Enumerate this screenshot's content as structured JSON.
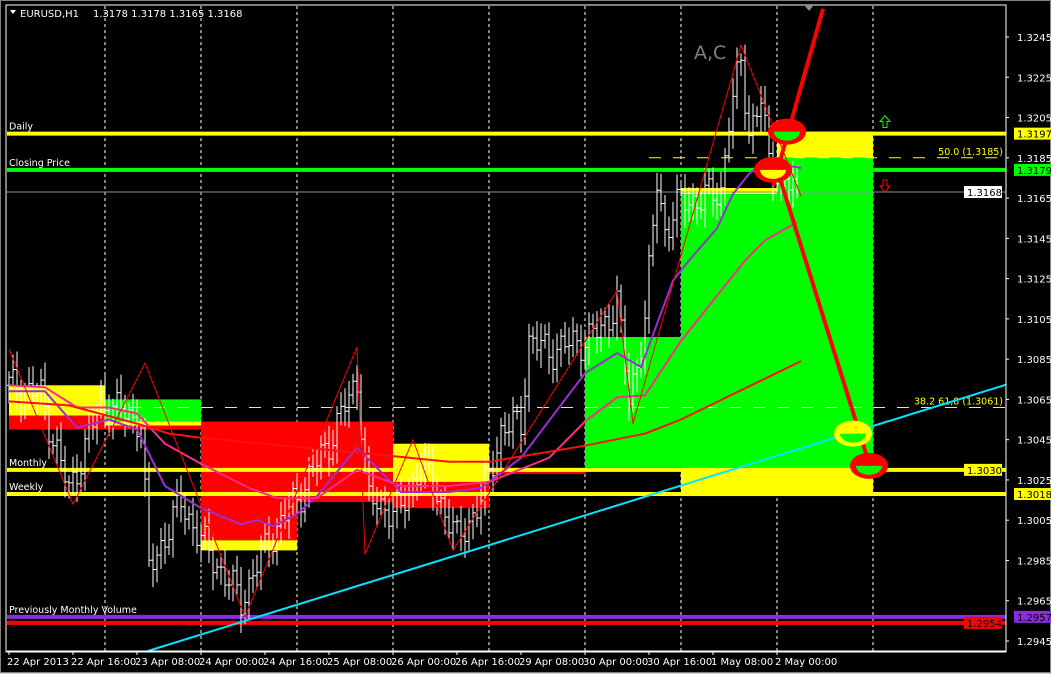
{
  "header": {
    "symbol_label": "EURUSD,H1",
    "ohlc": "1.3178 1.3178 1.3165 1.3168"
  },
  "chart_data": {
    "type": "ohlc_bar",
    "symbol": "EURUSD",
    "timeframe": "H1",
    "ylim": [
      1.2945,
      1.3245
    ],
    "y_ticks": [
      "1.3245",
      "1.3225",
      "1.3205",
      "1.3185",
      "1.3165",
      "1.3145",
      "1.3125",
      "1.3105",
      "1.3085",
      "1.3065",
      "1.3045",
      "1.3025",
      "1.3005",
      "1.2985",
      "1.2965",
      "1.2945"
    ],
    "x_ticks": [
      {
        "t": "2013-04-22 00:00",
        "label": "22 Apr 2013"
      },
      {
        "t": "2013-04-22 16:00",
        "label": "22 Apr 16:00"
      },
      {
        "t": "2013-04-23 08:00",
        "label": "23 Apr 08:00"
      },
      {
        "t": "2013-04-24 00:00",
        "label": "24 Apr 00:00"
      },
      {
        "t": "2013-04-24 16:00",
        "label": "24 Apr 16:00"
      },
      {
        "t": "2013-04-25 08:00",
        "label": "25 Apr 08:00"
      },
      {
        "t": "2013-04-26 00:00",
        "label": "26 Apr 00:00"
      },
      {
        "t": "2013-04-26 16:00",
        "label": "26 Apr 16:00"
      },
      {
        "t": "2013-04-29 08:00",
        "label": "29 Apr 08:00"
      },
      {
        "t": "2013-04-30 00:00",
        "label": "30 Apr 00:00"
      },
      {
        "t": "2013-04-30 16:00",
        "label": "30 Apr 16:00"
      },
      {
        "t": "2013-05-01 08:00",
        "label": "1 May 08:00"
      },
      {
        "t": "2013-05-02 00:00",
        "label": "2 May 00:00"
      }
    ],
    "period_separators": [
      "2013-04-23 00:00",
      "2013-04-24 00:00",
      "2013-04-25 00:00",
      "2013-04-26 00:00",
      "2013-04-29 00:00",
      "2013-04-30 00:00",
      "2013-05-01 00:00",
      "2013-05-02 00:00",
      "2013-05-03 00:00"
    ],
    "price_path": [
      [
        "2013-04-22 00:00",
        1.3072
      ],
      [
        "2013-04-22 08:00",
        1.3067
      ],
      [
        "2013-04-22 15:00",
        1.3019
      ],
      [
        "2013-04-22 23:00",
        1.3064
      ],
      [
        "2013-04-23 09:00",
        1.3054
      ],
      [
        "2013-04-23 11:00",
        1.298
      ],
      [
        "2013-04-23 19:00",
        1.3014
      ],
      [
        "2013-04-24 00:00",
        1.2995
      ],
      [
        "2013-04-24 10:00",
        1.2965
      ],
      [
        "2013-04-24 17:00",
        1.2995
      ],
      [
        "2013-04-25 01:00",
        1.3019
      ],
      [
        "2013-04-25 08:00",
        1.3044
      ],
      [
        "2013-04-25 15:00",
        1.3074
      ],
      [
        "2013-04-25 18:00",
        1.3014
      ],
      [
        "2013-04-26 02:00",
        1.3009
      ],
      [
        "2013-04-26 07:00",
        1.3034
      ],
      [
        "2013-04-26 12:00",
        1.3014
      ],
      [
        "2013-04-26 16:00",
        1.2995
      ],
      [
        "2013-04-26 22:00",
        1.3014
      ],
      [
        "2013-04-29 03:00",
        1.3049
      ],
      [
        "2013-04-29 08:00",
        1.3054
      ],
      [
        "2013-04-29 10:00",
        1.3094
      ],
      [
        "2013-04-29 15:00",
        1.3089
      ],
      [
        "2013-04-29 23:00",
        1.3094
      ],
      [
        "2013-04-30 04:00",
        1.3099
      ],
      [
        "2013-04-30 08:00",
        1.3114
      ],
      [
        "2013-04-30 11:00",
        1.3064
      ],
      [
        "2013-04-30 15:00",
        1.3104
      ],
      [
        "2013-04-30 18:00",
        1.3173
      ],
      [
        "2013-04-30 20:00",
        1.3149
      ],
      [
        "2013-05-01 00:00",
        1.3164
      ],
      [
        "2013-05-01 05:00",
        1.3164
      ],
      [
        "2013-05-01 10:00",
        1.3169
      ],
      [
        "2013-05-01 12:00",
        1.3203
      ],
      [
        "2013-05-01 15:00",
        1.3233
      ],
      [
        "2013-05-01 17:00",
        1.3198
      ],
      [
        "2013-05-01 20:00",
        1.3213
      ],
      [
        "2013-05-01 22:00",
        1.3183
      ],
      [
        "2013-05-02 02:00",
        1.3173
      ],
      [
        "2013-05-02 05:00",
        1.3168
      ]
    ],
    "moving_averages": [
      {
        "color": "#9b30d0",
        "points": [
          [
            "2013-04-22 00:00",
            1.3069
          ],
          [
            "2013-04-22 09:00",
            1.3069
          ],
          [
            "2013-04-22 17:00",
            1.3051
          ],
          [
            "2013-04-23 01:00",
            1.3055
          ],
          [
            "2013-04-23 08:00",
            1.305
          ],
          [
            "2013-04-23 15:00",
            1.3022
          ],
          [
            "2013-04-24 00:00",
            1.3011
          ],
          [
            "2013-04-24 10:00",
            1.3003
          ],
          [
            "2013-04-24 14:00",
            1.3005
          ],
          [
            "2013-04-24 18:00",
            1.3002
          ],
          [
            "2013-04-25 00:00",
            1.3008
          ],
          [
            "2013-04-25 05:00",
            1.3017
          ],
          [
            "2013-04-25 15:00",
            1.3041
          ],
          [
            "2013-04-26 02:00",
            1.3019
          ],
          [
            "2013-04-26 14:00",
            1.3019
          ],
          [
            "2013-04-26 22:00",
            1.3021
          ],
          [
            "2013-04-29 08:00",
            1.3036
          ],
          [
            "2013-04-30 00:00",
            1.3078
          ],
          [
            "2013-04-30 08:00",
            1.3088
          ],
          [
            "2013-04-30 14:00",
            1.3081
          ],
          [
            "2013-04-30 22:00",
            1.3124
          ],
          [
            "2013-05-01 02:00",
            1.3134
          ],
          [
            "2013-05-01 09:00",
            1.315
          ],
          [
            "2013-05-01 13:00",
            1.3167
          ],
          [
            "2013-05-01 17:00",
            1.3177
          ],
          [
            "2013-05-01 21:00",
            1.3183
          ],
          [
            "2013-05-02 06:00",
            1.318
          ]
        ]
      },
      {
        "color": "#ff2a8a",
        "points": [
          [
            "2013-04-22 00:00",
            1.3072
          ],
          [
            "2013-04-22 09:00",
            1.3071
          ],
          [
            "2013-04-22 17:00",
            1.3061
          ],
          [
            "2013-04-23 01:00",
            1.3061
          ],
          [
            "2013-04-23 08:00",
            1.3058
          ],
          [
            "2013-04-23 15:00",
            1.3043
          ],
          [
            "2013-04-24 00:00",
            1.3033
          ],
          [
            "2013-04-24 12:00",
            1.3021
          ],
          [
            "2013-04-24 19:00",
            1.3016
          ],
          [
            "2013-04-25 05:00",
            1.3016
          ],
          [
            "2013-04-25 15:00",
            1.303
          ],
          [
            "2013-04-26 02:00",
            1.3022
          ],
          [
            "2013-04-26 14:00",
            1.3022
          ],
          [
            "2013-04-29 00:00",
            1.3024
          ],
          [
            "2013-04-29 15:00",
            1.3036
          ],
          [
            "2013-04-30 00:00",
            1.3054
          ],
          [
            "2013-04-30 08:00",
            1.3066
          ],
          [
            "2013-04-30 15:00",
            1.3067
          ],
          [
            "2013-05-01 00:00",
            1.3094
          ],
          [
            "2013-05-01 16:00",
            1.3134
          ],
          [
            "2013-05-01 21:00",
            1.3144
          ],
          [
            "2013-05-02 05:00",
            1.3153
          ]
        ]
      },
      {
        "color": "#ff1010",
        "points": [
          [
            "2013-04-22 00:00",
            1.3064
          ],
          [
            "2013-04-22 15:00",
            1.3062
          ],
          [
            "2013-04-23 08:00",
            1.3053
          ],
          [
            "2013-04-23 16:00",
            1.3048
          ],
          [
            "2013-04-24 00:00",
            1.3046
          ],
          [
            "2013-04-25 23:00",
            1.3037
          ],
          [
            "2013-04-26 14:00",
            1.3034
          ],
          [
            "2013-04-29 00:00",
            1.3034
          ],
          [
            "2013-04-30 00:00",
            1.3042
          ],
          [
            "2013-04-30 15:00",
            1.3048
          ],
          [
            "2013-05-01 00:00",
            1.3055
          ],
          [
            "2013-05-02 06:00",
            1.3084
          ]
        ]
      }
    ],
    "zigzag": {
      "color": "#ff0000",
      "points": [
        [
          "2013-04-22 00:00",
          1.309
        ],
        [
          "2013-04-22 16:00",
          1.3013
        ],
        [
          "2013-04-23 10:00",
          1.3083
        ],
        [
          "2013-04-24 11:00",
          1.2957
        ],
        [
          "2013-04-25 15:00",
          1.3091
        ],
        [
          "2013-04-25 17:00",
          1.2988
        ],
        [
          "2013-04-26 05:00",
          1.3045
        ],
        [
          "2013-04-26 15:00",
          1.299
        ],
        [
          "2013-04-30 08:00",
          1.3119
        ],
        [
          "2013-04-30 12:00",
          1.3053
        ],
        [
          "2013-05-01 15:00",
          1.3241
        ],
        [
          "2013-05-02 06:00",
          1.3166
        ]
      ]
    },
    "zones": [
      {
        "from": "2013-04-22 00:00",
        "to": "2013-04-23 00:00",
        "top": 1.3072,
        "bottom": 1.3057,
        "color": "#ffff00"
      },
      {
        "from": "2013-04-22 00:00",
        "to": "2013-04-23 00:00",
        "top": 1.3057,
        "bottom": 1.305,
        "color": "#ff0000"
      },
      {
        "from": "2013-04-23 00:00",
        "to": "2013-04-24 00:00",
        "top": 1.3065,
        "bottom": 1.3054,
        "color": "#00ff00"
      },
      {
        "from": "2013-04-23 00:00",
        "to": "2013-04-24 00:00",
        "top": 1.3054,
        "bottom": 1.3052,
        "color": "#ffff00"
      },
      {
        "from": "2013-04-23 00:00",
        "to": "2013-04-24 00:00",
        "top": 1.3052,
        "bottom": 1.305,
        "color": "#ff0000"
      },
      {
        "from": "2013-04-24 00:00",
        "to": "2013-04-25 00:00",
        "top": 1.3054,
        "bottom": 1.2995,
        "color": "#ff0000"
      },
      {
        "from": "2013-04-24 00:00",
        "to": "2013-04-25 00:00",
        "top": 1.2995,
        "bottom": 1.299,
        "color": "#ffff00"
      },
      {
        "from": "2013-04-25 00:00",
        "to": "2013-04-26 00:00",
        "top": 1.3054,
        "bottom": 1.3014,
        "color": "#ff0000"
      },
      {
        "from": "2013-04-26 00:00",
        "to": "2013-04-29 00:00",
        "top": 1.3043,
        "bottom": 1.3024,
        "color": "#ffff00"
      },
      {
        "from": "2013-04-26 00:00",
        "to": "2013-04-29 00:00",
        "top": 1.3024,
        "bottom": 1.3011,
        "color": "#ff0000"
      },
      {
        "from": "2013-04-29 00:00",
        "to": "2013-04-30 00:00",
        "top": 1.3031,
        "bottom": 1.3028,
        "color": "#ff0000"
      },
      {
        "from": "2013-04-30 00:00",
        "to": "2013-05-01 00:00",
        "top": 1.3096,
        "bottom": 1.3031,
        "color": "#00ff00"
      },
      {
        "from": "2013-05-01 00:00",
        "to": "2013-05-02 00:00",
        "top": 1.317,
        "bottom": 1.3167,
        "color": "#ffff00"
      },
      {
        "from": "2013-05-01 00:00",
        "to": "2013-05-02 00:00",
        "top": 1.3167,
        "bottom": 1.3031,
        "color": "#00ff00"
      },
      {
        "from": "2013-05-02 00:00",
        "to": "2013-05-03 00:00",
        "top": 1.3198,
        "bottom": 1.3185,
        "color": "#ffff00"
      },
      {
        "from": "2013-05-02 00:00",
        "to": "2013-05-03 00:00",
        "top": 1.3185,
        "bottom": 1.3031,
        "color": "#00ff00"
      },
      {
        "from": "2013-05-01 00:00",
        "to": "2013-05-03 00:00",
        "top": 1.3031,
        "bottom": 1.3017,
        "color": "#ffff00"
      }
    ],
    "levels": [
      {
        "label": "Daily",
        "price": 1.3197,
        "value": "1.3197",
        "color": "#ffff00",
        "text_color": "#000000"
      },
      {
        "label": "Closing Price",
        "price": 1.3179,
        "value": "1.3179",
        "color": "#00ff00",
        "text_color": "#000000"
      },
      {
        "label": "",
        "price": 1.3168,
        "value": "1.3168",
        "color": "#8090a0",
        "text_color": "#000000",
        "box_color": "#ffffff"
      },
      {
        "label": "Monthly",
        "price": 1.303,
        "value": "1.3030",
        "color": "#ffff00",
        "text_color": "#000000"
      },
      {
        "label": "Weekly",
        "price": 1.3018,
        "value": "1.3018",
        "color": "#ffff00",
        "text_color": "#000000"
      },
      {
        "label": "Previously Monthly Volume",
        "price": 1.2957,
        "value": "1.2957",
        "color": "#8a2be2",
        "text_color": "#000000"
      },
      {
        "label": "",
        "price": 1.2954,
        "value": "1.2954",
        "color": "#ff0000",
        "text_color": "#000000"
      }
    ],
    "fibo": [
      {
        "label": "50.0 (1.3185)",
        "price": 1.3185,
        "from": "2013-04-30 16:00"
      },
      {
        "label": "38.2 61,8 (1.3061)",
        "price": 1.3061,
        "from": "2013-04-22 00:00"
      }
    ],
    "trendlines": [
      {
        "color": "#00e5ff",
        "width": 2,
        "p1": [
          "2013-04-24 11:00",
          1.2955
        ],
        "p2": [
          "2013-05-02 00:00",
          1.3037
        ],
        "extend": true
      },
      {
        "color": "#ff0000",
        "width": 4,
        "p1": [
          "2013-05-01 23:00",
          1.3171
        ],
        "p2": [
          "2013-05-02 11:30",
          1.3259
        ],
        "extend": false
      },
      {
        "color": "#ff0000",
        "width": 4,
        "p1": [
          "2013-05-01 23:45",
          1.3181
        ],
        "p2": [
          "2013-05-03 00:00",
          1.3027
        ],
        "extend": false
      }
    ],
    "markers": [
      {
        "t": "2013-05-02 02:30",
        "price": 1.3198,
        "color": "#ff0000",
        "inner": "#00ff00"
      },
      {
        "t": "2013-05-01 23:00",
        "price": 1.3179,
        "color": "#ff0000",
        "inner": "#ffff00"
      },
      {
        "t": "2013-05-02 19:00",
        "price": 1.3048,
        "color": "#ffff00",
        "inner": "#00ff00"
      },
      {
        "t": "2013-05-02 23:00",
        "price": 1.3032,
        "color": "#ff0000",
        "inner": "#00ff00"
      }
    ],
    "annotations": [
      {
        "text": "A,C",
        "t": "2013-05-01 12:00",
        "price": 1.324
      }
    ],
    "arrows": [
      {
        "direction": "up",
        "color": "#00ff00",
        "t": "2013-05-03 03:00",
        "price": 1.3203
      },
      {
        "direction": "down",
        "color": "#ff0000",
        "t": "2013-05-03 03:00",
        "price": 1.3171
      }
    ]
  }
}
